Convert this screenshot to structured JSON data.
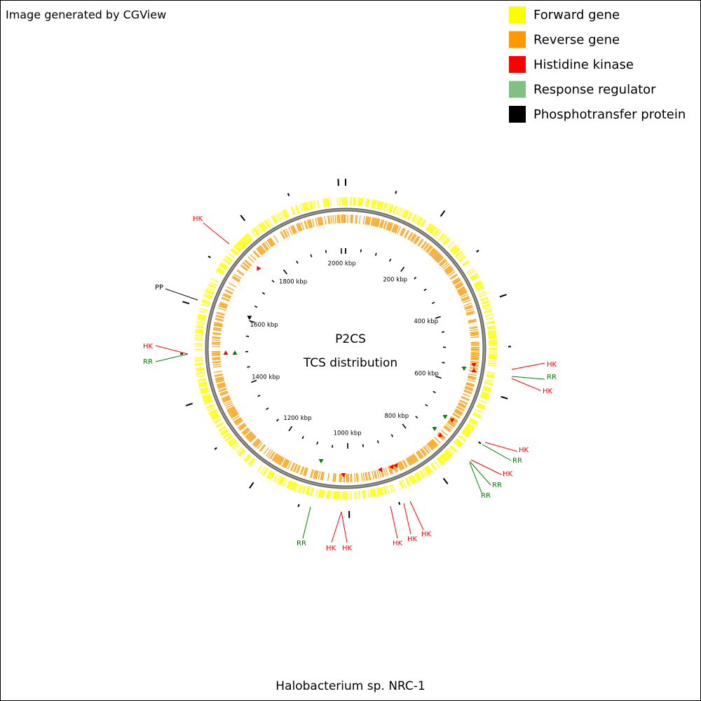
{
  "header": {
    "credit": "Image generated by CGView"
  },
  "legend": [
    {
      "label": "Forward gene",
      "color": "#ffff00"
    },
    {
      "label": "Reverse gene",
      "color": "#ff9900"
    },
    {
      "label": "Histidine kinase",
      "color": "#ff0000"
    },
    {
      "label": "Response regulator",
      "color": "#80c080"
    },
    {
      "label": "Phosphotransfer protein",
      "color": "#000000"
    }
  ],
  "map": {
    "title": "P2CS",
    "subtitle": "TCS distribution",
    "organism": "Halobacterium sp. NRC-1",
    "position_labels": [
      "200 kbp",
      "400 kbp",
      "600 kbp",
      "800 kbp",
      "1000 kbp",
      "1200 kbp",
      "1400 kbp",
      "1600 kbp",
      "1800 kbp",
      "2000 kbp"
    ],
    "callouts": [
      {
        "label": "HK",
        "color": "#ff0000"
      },
      {
        "label": "PP",
        "color": "#000000"
      },
      {
        "label": "HK",
        "color": "#ff0000"
      },
      {
        "label": "RR",
        "color": "#008000"
      },
      {
        "label": "HK",
        "color": "#ff0000"
      },
      {
        "label": "RR",
        "color": "#008000"
      },
      {
        "label": "HK",
        "color": "#ff0000"
      },
      {
        "label": "HK",
        "color": "#ff0000"
      },
      {
        "label": "RR",
        "color": "#008000"
      },
      {
        "label": "HK",
        "color": "#ff0000"
      },
      {
        "label": "RR",
        "color": "#008000"
      },
      {
        "label": "RR",
        "color": "#008000"
      },
      {
        "label": "HK",
        "color": "#ff0000"
      },
      {
        "label": "HK",
        "color": "#ff0000"
      },
      {
        "label": "HK",
        "color": "#ff0000"
      },
      {
        "label": "HK",
        "color": "#ff0000"
      },
      {
        "label": "HK",
        "color": "#ff0000"
      },
      {
        "label": "RR",
        "color": "#008000"
      }
    ]
  }
}
